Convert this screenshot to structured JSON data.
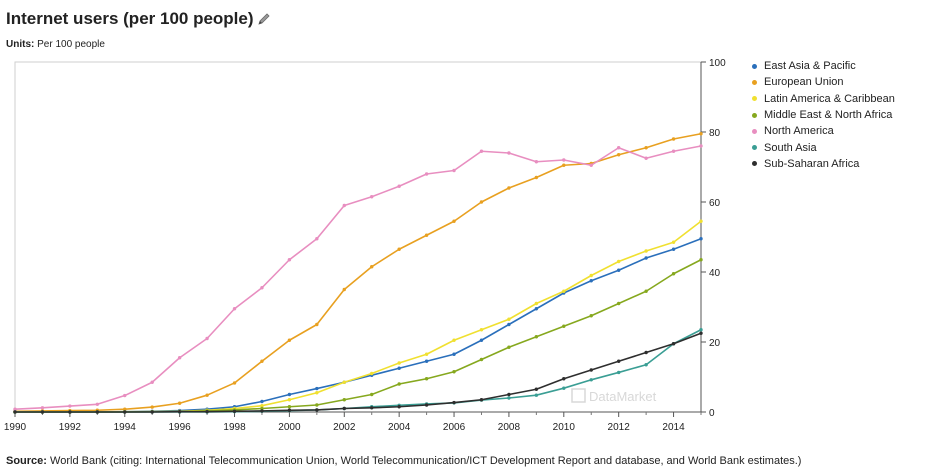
{
  "header": {
    "title": "Internet users (per 100 people)",
    "edit_icon": "pencil-icon",
    "units_label": "Units:",
    "units_value": "Per 100 people"
  },
  "watermark": "DataMarket",
  "source": {
    "label": "Source:",
    "text": "World Bank (citing: International Telecommunication Union, World Telecommunication/ICT Development Report and database, and World Bank estimates.)"
  },
  "chart_data": {
    "type": "line",
    "title": "Internet users (per 100 people)",
    "xlabel": "",
    "ylabel": "",
    "x": [
      1990,
      1991,
      1992,
      1993,
      1994,
      1995,
      1996,
      1997,
      1998,
      1999,
      2000,
      2001,
      2002,
      2003,
      2004,
      2005,
      2006,
      2007,
      2008,
      2009,
      2010,
      2011,
      2012,
      2013,
      2014,
      2015
    ],
    "xlim": [
      1990,
      2015
    ],
    "ylim": [
      0,
      100
    ],
    "x_ticks": [
      "1990",
      "1992",
      "1994",
      "1996",
      "1998",
      "2000",
      "2002",
      "2004",
      "2006",
      "2008",
      "2010",
      "2012",
      "2014"
    ],
    "y_ticks": [
      "0",
      "20",
      "40",
      "60",
      "80",
      "100"
    ],
    "y_axis_side": "right",
    "grid": false,
    "legend_position": "right",
    "series": [
      {
        "name": "East Asia & Pacific",
        "color": "#2a6fbb",
        "values": [
          0,
          0,
          0,
          0,
          0.1,
          0.2,
          0.4,
          0.8,
          1.5,
          3,
          5,
          6.7,
          8.5,
          10.5,
          12.5,
          14.5,
          16.5,
          20.5,
          25,
          29.5,
          34,
          37.5,
          40.5,
          44,
          46.5,
          49.5
        ]
      },
      {
        "name": "European Union",
        "color": "#e8a020",
        "values": [
          0.2,
          0.3,
          0.4,
          0.5,
          0.8,
          1.4,
          2.5,
          4.8,
          8.3,
          14.5,
          20.5,
          25,
          35,
          41.5,
          46.5,
          50.5,
          54.5,
          60,
          64,
          67,
          70.5,
          71,
          73.5,
          75.5,
          78,
          79.5
        ]
      },
      {
        "name": "Latin America & Caribbean",
        "color": "#f0e030",
        "values": [
          0,
          0,
          0,
          0,
          0.1,
          0.1,
          0.2,
          0.5,
          1,
          1.8,
          3.5,
          5.5,
          8.5,
          11,
          14,
          16.5,
          20.5,
          23.5,
          26.5,
          31,
          34.5,
          39,
          43,
          46,
          48.5,
          54.5
        ]
      },
      {
        "name": "Middle East & North Africa",
        "color": "#86a81e",
        "values": [
          0,
          0,
          0,
          0,
          0,
          0.1,
          0.1,
          0.3,
          0.6,
          1,
          1.5,
          2,
          3.5,
          5,
          8,
          9.5,
          11.5,
          15,
          18.5,
          21.5,
          24.5,
          27.5,
          31,
          34.5,
          39.5,
          43.5
        ]
      },
      {
        "name": "North America",
        "color": "#e88ec0",
        "values": [
          0.8,
          1.2,
          1.7,
          2.2,
          4.7,
          8.5,
          15.5,
          21,
          29.5,
          35.5,
          43.5,
          49.5,
          59,
          61.5,
          64.5,
          68,
          69,
          74.5,
          74,
          71.5,
          72,
          70.5,
          75.5,
          72.5,
          74.5,
          76
        ]
      },
      {
        "name": "South Asia",
        "color": "#3a9e94",
        "values": [
          0,
          0,
          0,
          0,
          0,
          0,
          0,
          0,
          0.1,
          0.2,
          0.4,
          0.6,
          1,
          1.5,
          1.9,
          2.3,
          2.6,
          3.4,
          4,
          4.8,
          6.8,
          9.2,
          11.3,
          13.5,
          19.5,
          23.5
        ]
      },
      {
        "name": "Sub-Saharan Africa",
        "color": "#2e2e2e",
        "values": [
          0,
          0,
          0,
          0,
          0,
          0,
          0.1,
          0.1,
          0.2,
          0.3,
          0.5,
          0.6,
          1,
          1.2,
          1.5,
          2,
          2.7,
          3.5,
          5,
          6.5,
          9.5,
          12,
          14.5,
          17,
          19.5,
          22.5
        ]
      }
    ]
  }
}
